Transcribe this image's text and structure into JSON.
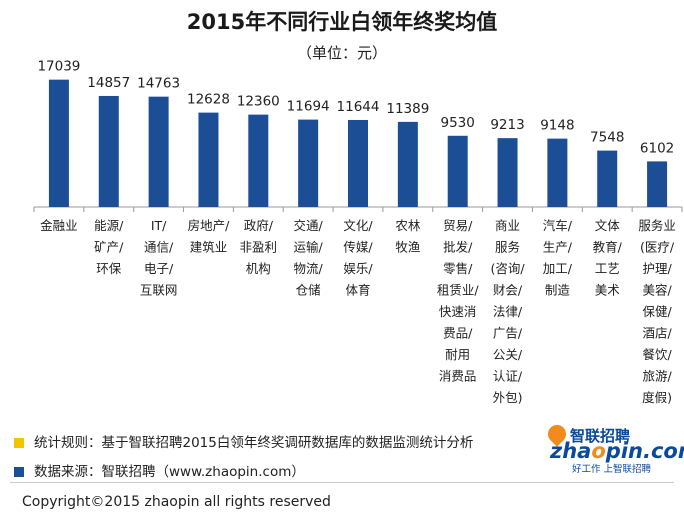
{
  "chart_data": {
    "type": "bar",
    "title": "2015年不同行业白领年终奖均值",
    "subtitle": "（单位：元）",
    "categories": [
      [
        "金融业"
      ],
      [
        "能源/",
        "矿产/",
        "环保"
      ],
      [
        "IT/",
        "通信/",
        "电子/",
        "互联网"
      ],
      [
        "房地产/",
        "建筑业"
      ],
      [
        "政府/",
        "非盈利",
        "机构"
      ],
      [
        "交通/",
        "运输/",
        "物流/",
        "仓储"
      ],
      [
        "文化/",
        "传媒/",
        "娱乐/",
        "体育"
      ],
      [
        "农林",
        "牧渔"
      ],
      [
        "贸易/",
        "批发/",
        "零售/",
        "租赁业/",
        "快速消",
        "费品/",
        "耐用",
        "消费品"
      ],
      [
        "商业",
        "服务",
        "(咨询/",
        "财会/",
        "法律/",
        "广告/",
        "公关/",
        "认证/",
        "外包)"
      ],
      [
        "汽车/",
        "生产/",
        "加工/",
        "制造"
      ],
      [
        "文体",
        "教育/",
        "工艺",
        "美术"
      ],
      [
        "服务业",
        "(医疗/",
        "护理/",
        "美容/",
        "保健/",
        "酒店/",
        "餐饮/",
        "旅游/",
        "度假)"
      ]
    ],
    "values": [
      17039,
      14857,
      14763,
      12628,
      12360,
      11694,
      11644,
      11389,
      9530,
      9213,
      9148,
      7548,
      6102
    ],
    "value_labels": [
      "17039",
      "14857",
      "14763",
      "12628",
      "12360",
      "11694",
      "11644",
      "11389",
      "9530",
      "9213",
      "9148",
      "7548",
      "6102"
    ],
    "ylim": [
      0,
      19000
    ],
    "grid": false,
    "bar_color": "#1c4e96"
  },
  "notes": {
    "rule_label": "统计规则：基于智联招聘2015白领年终奖调研数据库的数据监测统计分析",
    "rule_color": "#f5c400",
    "source_label": "数据来源：智联招聘（www.zhaopin.com）",
    "source_color": "#1c4e96"
  },
  "logo": {
    "cn": "智联招聘",
    "en_prefix": "zha",
    "en_o": "o",
    "en_suffix": "pin.com",
    "slogan": "好工作 上智联招聘"
  },
  "copyright": "Copyright©2015 zhaopin all rights reserved"
}
